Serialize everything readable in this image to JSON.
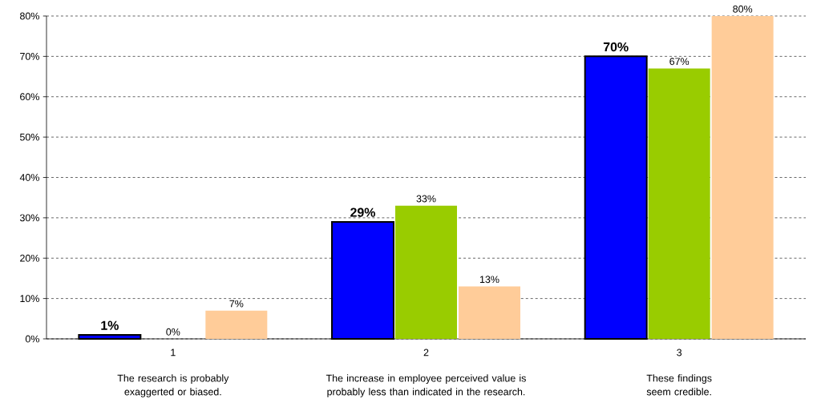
{
  "chart_data": {
    "type": "bar",
    "categories": [
      "1",
      "2",
      "3"
    ],
    "series": [
      {
        "color": "#0000ff",
        "values": [
          1,
          29,
          70
        ],
        "value_labels": [
          "1%",
          "29%",
          "70%"
        ]
      },
      {
        "color": "#99cc00",
        "values": [
          0,
          33,
          67
        ],
        "value_labels": [
          "0%",
          "33%",
          "67%"
        ]
      },
      {
        "color": "#ffcc99",
        "values": [
          7,
          13,
          80
        ],
        "value_labels": [
          "7%",
          "13%",
          "80%"
        ]
      }
    ],
    "ylim": [
      0,
      80
    ],
    "yticks": [
      {
        "value": 0,
        "label": "0%"
      },
      {
        "value": 10,
        "label": "10%"
      },
      {
        "value": 20,
        "label": "20%"
      },
      {
        "value": 30,
        "label": "30%"
      },
      {
        "value": 40,
        "label": "40%"
      },
      {
        "value": 50,
        "label": "50%"
      },
      {
        "value": 60,
        "label": "60%"
      },
      {
        "value": 70,
        "label": "70%"
      },
      {
        "value": 80,
        "label": "80%"
      }
    ],
    "grid": "y",
    "annotations": [
      "The research is probably exaggerted or biased.",
      "The increase in employee perceived value is probably less than indicated in the research.",
      "These findings seem credible."
    ]
  }
}
